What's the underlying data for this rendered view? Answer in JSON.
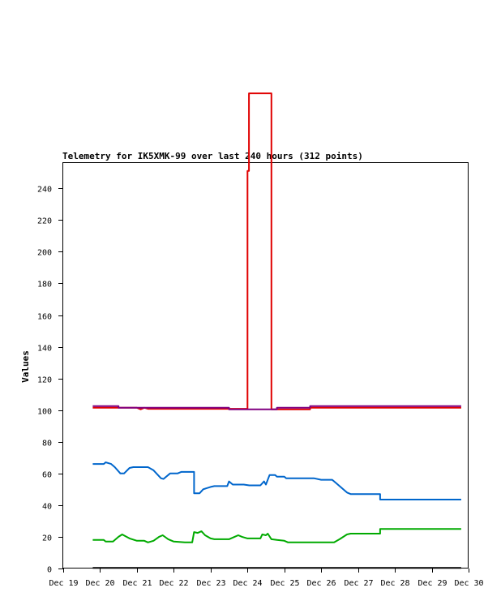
{
  "chart_data": {
    "type": "line",
    "title": "Telemetry for IK5XMK-99 over last 240 hours (312 points)",
    "xlabel": "",
    "ylabel": "Values",
    "x_tick_labels": [
      "Dec 19",
      "Dec 20",
      "Dec 21",
      "Dec 22",
      "Dec 23",
      "Dec 24",
      "Dec 25",
      "Dec 26",
      "Dec 27",
      "Dec 28",
      "Dec 29",
      "Dec 30"
    ],
    "x_range_days": [
      19,
      30
    ],
    "y_tick_labels": [
      "0",
      "20",
      "40",
      "60",
      "80",
      "100",
      "120",
      "140",
      "160",
      "180",
      "200",
      "220",
      "240"
    ],
    "ylim": [
      0,
      256
    ],
    "grid": false,
    "legend": "none",
    "series": [
      {
        "color": "#e00000",
        "points": [
          [
            19.8,
            101.5
          ],
          [
            21.0,
            101.5
          ],
          [
            21.1,
            100.5
          ],
          [
            21.2,
            101.5
          ],
          [
            21.3,
            100.8
          ],
          [
            23.0,
            100.8
          ],
          [
            24.0,
            100.8
          ],
          [
            24.0,
            251
          ],
          [
            24.04,
            251
          ],
          [
            24.04,
            300
          ],
          [
            24.65,
            300
          ],
          [
            24.65,
            100.5
          ],
          [
            25.0,
            100.5
          ],
          [
            25.7,
            100.5
          ],
          [
            25.7,
            101.5
          ],
          [
            29.8,
            101.5
          ]
        ]
      },
      {
        "color": "#800080",
        "points": [
          [
            19.8,
            102.5
          ],
          [
            20.5,
            102.5
          ],
          [
            20.5,
            101.5
          ],
          [
            23.5,
            101.5
          ],
          [
            23.5,
            100.5
          ],
          [
            24.8,
            100.5
          ],
          [
            24.8,
            101.5
          ],
          [
            25.7,
            101.5
          ],
          [
            25.7,
            102.5
          ],
          [
            29.8,
            102.5
          ]
        ]
      },
      {
        "color": "#0066cc",
        "points": [
          [
            19.8,
            66
          ],
          [
            20.1,
            66
          ],
          [
            20.15,
            67
          ],
          [
            20.3,
            66
          ],
          [
            20.4,
            64
          ],
          [
            20.55,
            60
          ],
          [
            20.65,
            60
          ],
          [
            20.8,
            63.5
          ],
          [
            20.9,
            64
          ],
          [
            21.3,
            64
          ],
          [
            21.45,
            62
          ],
          [
            21.65,
            57
          ],
          [
            21.72,
            56.5
          ],
          [
            21.9,
            60
          ],
          [
            22.1,
            60
          ],
          [
            22.2,
            61
          ],
          [
            22.55,
            61
          ],
          [
            22.55,
            47.5
          ],
          [
            22.7,
            47.5
          ],
          [
            22.8,
            50
          ],
          [
            23.0,
            51.5
          ],
          [
            23.1,
            52
          ],
          [
            23.45,
            52
          ],
          [
            23.5,
            55
          ],
          [
            23.6,
            53
          ],
          [
            23.9,
            53
          ],
          [
            24.05,
            52.5
          ],
          [
            24.35,
            52.5
          ],
          [
            24.45,
            55
          ],
          [
            24.5,
            53
          ],
          [
            24.6,
            59
          ],
          [
            24.75,
            59
          ],
          [
            24.8,
            58
          ],
          [
            25.0,
            58
          ],
          [
            25.05,
            57
          ],
          [
            25.8,
            57
          ],
          [
            26.0,
            56
          ],
          [
            26.3,
            56
          ],
          [
            26.4,
            54
          ],
          [
            26.7,
            48
          ],
          [
            26.8,
            47
          ],
          [
            27.6,
            47
          ],
          [
            27.6,
            43.5
          ],
          [
            29.8,
            43.5
          ]
        ]
      },
      {
        "color": "#00aa00",
        "points": [
          [
            19.8,
            18
          ],
          [
            20.1,
            18
          ],
          [
            20.15,
            17
          ],
          [
            20.35,
            17
          ],
          [
            20.5,
            20
          ],
          [
            20.6,
            21.5
          ],
          [
            20.8,
            19
          ],
          [
            21.0,
            17.5
          ],
          [
            21.2,
            17.5
          ],
          [
            21.3,
            16.5
          ],
          [
            21.45,
            17.5
          ],
          [
            21.6,
            20
          ],
          [
            21.7,
            21
          ],
          [
            21.85,
            18.5
          ],
          [
            22.0,
            17
          ],
          [
            22.3,
            16.5
          ],
          [
            22.5,
            16.5
          ],
          [
            22.55,
            23
          ],
          [
            22.65,
            22.5
          ],
          [
            22.75,
            23.5
          ],
          [
            22.85,
            21
          ],
          [
            23.0,
            19
          ],
          [
            23.1,
            18.5
          ],
          [
            23.5,
            18.5
          ],
          [
            23.65,
            20
          ],
          [
            23.75,
            21
          ],
          [
            23.85,
            20
          ],
          [
            24.0,
            19
          ],
          [
            24.35,
            19
          ],
          [
            24.4,
            21.5
          ],
          [
            24.5,
            21
          ],
          [
            24.55,
            22
          ],
          [
            24.65,
            18.5
          ],
          [
            24.8,
            18
          ],
          [
            25.0,
            17.5
          ],
          [
            25.1,
            16.5
          ],
          [
            26.35,
            16.5
          ],
          [
            26.5,
            18.5
          ],
          [
            26.7,
            21.5
          ],
          [
            26.8,
            22
          ],
          [
            27.6,
            22
          ],
          [
            27.6,
            25
          ],
          [
            29.8,
            25
          ]
        ]
      },
      {
        "color": "#000000",
        "points": [
          [
            19.8,
            0.4
          ],
          [
            29.8,
            0.4
          ]
        ]
      }
    ]
  }
}
